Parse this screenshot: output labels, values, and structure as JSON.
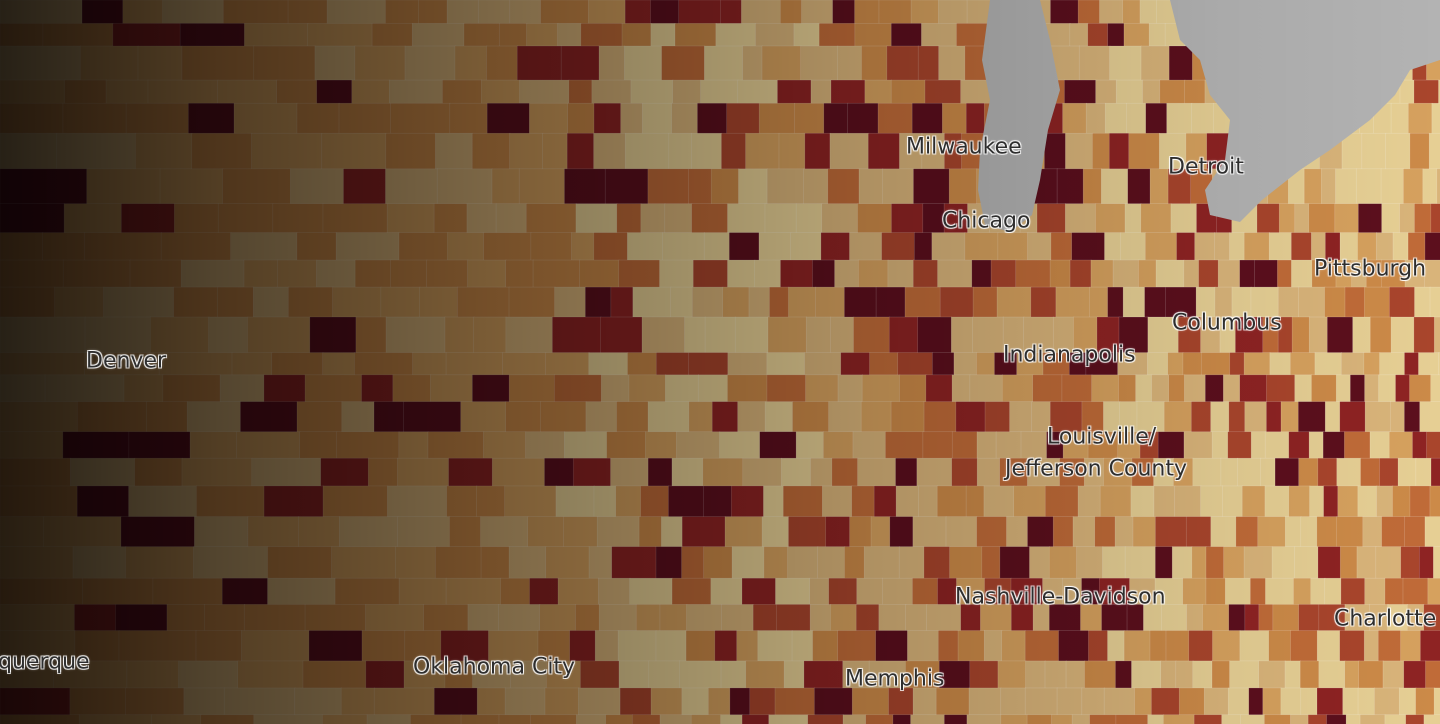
{
  "map": {
    "palette": [
      "#e6cf94",
      "#d9b47a",
      "#d6a15e",
      "#cc8a48",
      "#c06b38",
      "#a9452c",
      "#8e2323",
      "#5c0f1d"
    ],
    "water_color": "#b3b3b3",
    "cities": [
      {
        "name": "Milwaukee"
      },
      {
        "name": "Detroit"
      },
      {
        "name": "Chicago"
      },
      {
        "name": "Pittsburgh"
      },
      {
        "name": "Columbus"
      },
      {
        "name": "Indianapolis"
      },
      {
        "name": "Denver"
      },
      {
        "name": "Louisville/"
      },
      {
        "name": "Jefferson County"
      },
      {
        "name": "Nashville-Davidson"
      },
      {
        "name": "Charlotte"
      },
      {
        "name": "querque"
      },
      {
        "name": "Oklahoma City"
      },
      {
        "name": "Memphis"
      }
    ]
  }
}
